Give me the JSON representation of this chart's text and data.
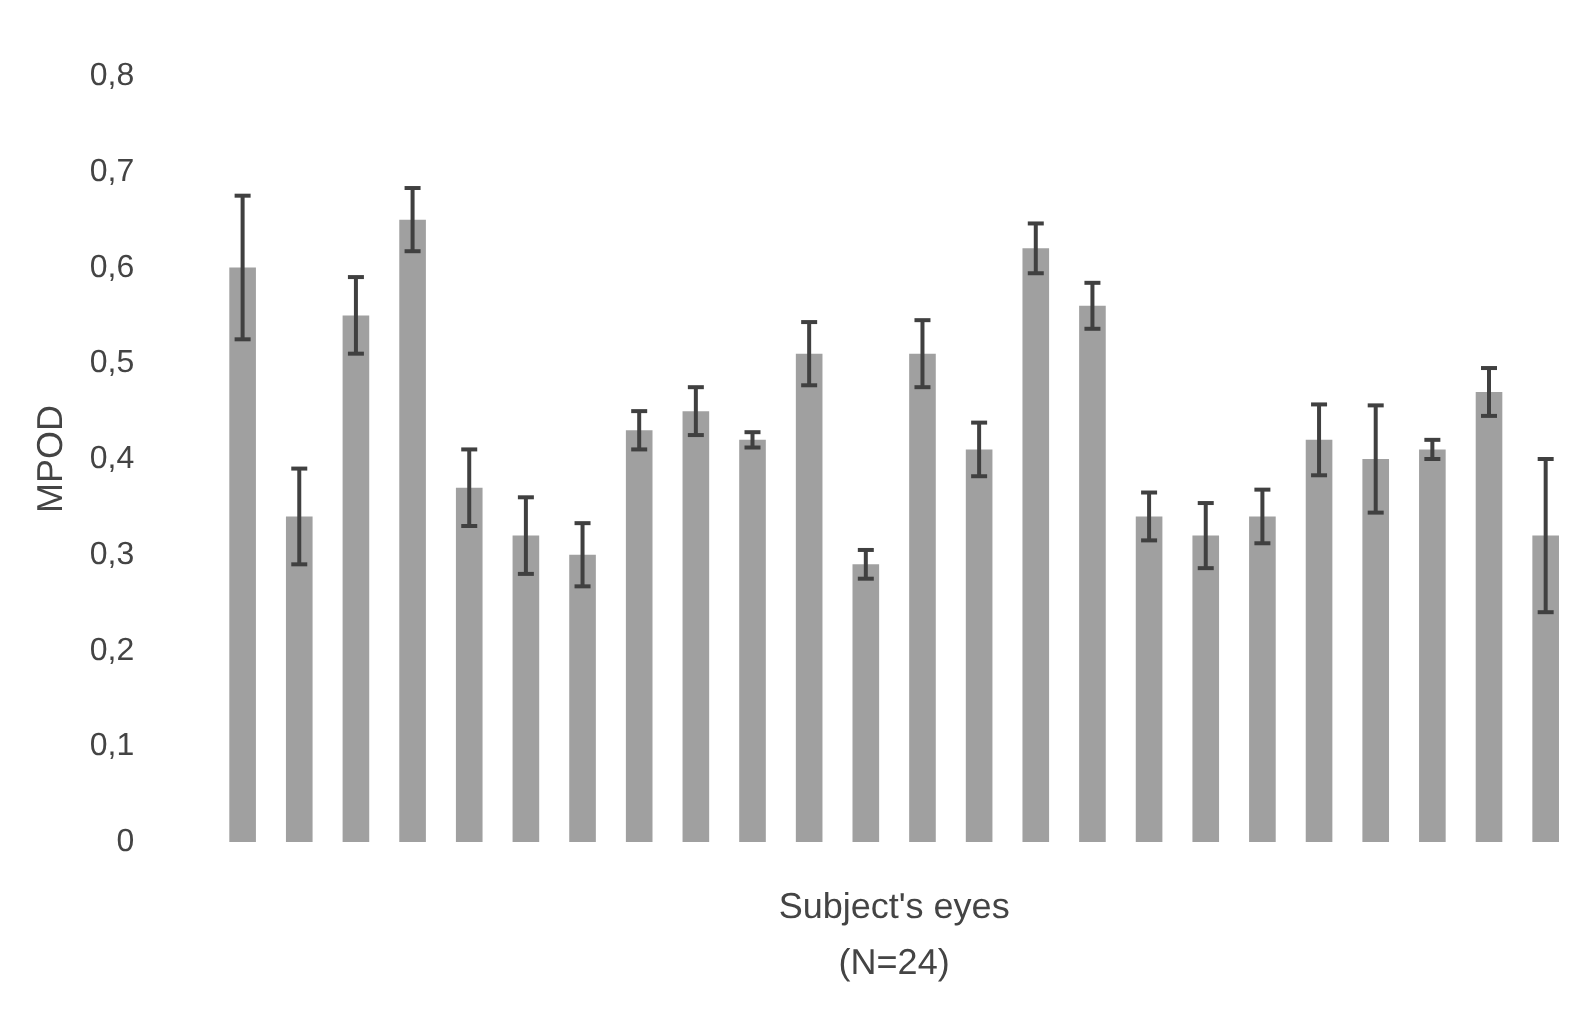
{
  "chart_data": {
    "type": "bar",
    "ylabel": "MPOD",
    "xlabel": "Subject's eyes\n(N=24)",
    "categories": [
      null,
      null,
      null,
      null,
      null,
      null,
      null,
      null,
      null,
      null,
      null,
      null,
      null,
      null,
      null,
      null,
      null,
      null,
      null,
      null,
      null,
      null,
      null,
      null
    ],
    "values": [
      0.6,
      0.34,
      0.55,
      0.65,
      0.37,
      0.32,
      0.3,
      0.43,
      0.45,
      0.42,
      0.51,
      0.29,
      0.51,
      0.41,
      0.62,
      0.56,
      0.34,
      0.32,
      0.34,
      0.42,
      0.4,
      0.41,
      0.47,
      0.32
    ],
    "errors": [
      0.075,
      0.05,
      0.04,
      0.033,
      0.04,
      0.04,
      0.033,
      0.02,
      0.025,
      0.008,
      0.033,
      0.015,
      0.035,
      0.028,
      0.026,
      0.024,
      0.025,
      0.034,
      0.028,
      0.037,
      0.056,
      0.01,
      0.025,
      0.08
    ],
    "color": "#a0a0a0",
    "ylim": [
      0,
      0.8
    ],
    "yticks": [
      0,
      {
        "value": 0.1,
        "label": "0,1"
      },
      {
        "value": 0.2,
        "label": "0,2"
      },
      {
        "value": 0.3,
        "label": "0,3"
      },
      {
        "value": 0.4,
        "label": "0,4"
      },
      {
        "value": 0.5,
        "label": "0,5"
      },
      {
        "value": 0.6,
        "label": "0,6"
      },
      {
        "value": 0.7,
        "label": "0,7"
      },
      {
        "value": 0.8,
        "label": "0,8"
      }
    ],
    "grid": false
  }
}
